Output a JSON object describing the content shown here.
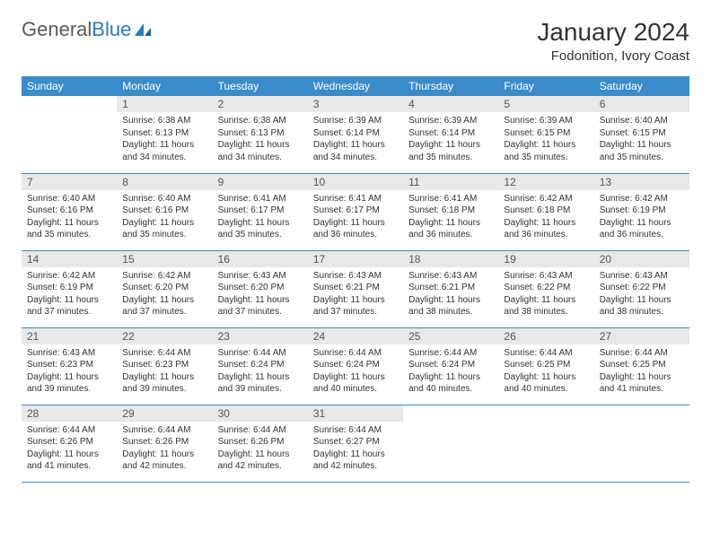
{
  "logo": {
    "text_gray": "General",
    "text_blue": "Blue"
  },
  "header": {
    "month_title": "January 2024",
    "location": "Fodonition, Ivory Coast"
  },
  "colors": {
    "header_bg": "#3a8bc9",
    "header_text": "#ffffff",
    "daynum_bg": "#e8e8e8",
    "daynum_text": "#555555",
    "body_text": "#333333",
    "row_divider": "#3a8bc9",
    "logo_gray": "#5a5a5a",
    "logo_blue": "#2b7bbf",
    "page_bg": "#ffffff"
  },
  "typography": {
    "month_title_pt": 28,
    "location_pt": 15,
    "weekday_header_pt": 12,
    "daynum_pt": 12,
    "daytext_pt": 10,
    "logo_pt": 22
  },
  "weekdays": [
    "Sunday",
    "Monday",
    "Tuesday",
    "Wednesday",
    "Thursday",
    "Friday",
    "Saturday"
  ],
  "calendar": {
    "type": "table",
    "columns": 7,
    "rows": 5,
    "first_weekday_index": 1,
    "days": [
      {
        "num": "1",
        "sunrise": "Sunrise: 6:38 AM",
        "sunset": "Sunset: 6:13 PM",
        "daylight1": "Daylight: 11 hours",
        "daylight2": "and 34 minutes."
      },
      {
        "num": "2",
        "sunrise": "Sunrise: 6:38 AM",
        "sunset": "Sunset: 6:13 PM",
        "daylight1": "Daylight: 11 hours",
        "daylight2": "and 34 minutes."
      },
      {
        "num": "3",
        "sunrise": "Sunrise: 6:39 AM",
        "sunset": "Sunset: 6:14 PM",
        "daylight1": "Daylight: 11 hours",
        "daylight2": "and 34 minutes."
      },
      {
        "num": "4",
        "sunrise": "Sunrise: 6:39 AM",
        "sunset": "Sunset: 6:14 PM",
        "daylight1": "Daylight: 11 hours",
        "daylight2": "and 35 minutes."
      },
      {
        "num": "5",
        "sunrise": "Sunrise: 6:39 AM",
        "sunset": "Sunset: 6:15 PM",
        "daylight1": "Daylight: 11 hours",
        "daylight2": "and 35 minutes."
      },
      {
        "num": "6",
        "sunrise": "Sunrise: 6:40 AM",
        "sunset": "Sunset: 6:15 PM",
        "daylight1": "Daylight: 11 hours",
        "daylight2": "and 35 minutes."
      },
      {
        "num": "7",
        "sunrise": "Sunrise: 6:40 AM",
        "sunset": "Sunset: 6:16 PM",
        "daylight1": "Daylight: 11 hours",
        "daylight2": "and 35 minutes."
      },
      {
        "num": "8",
        "sunrise": "Sunrise: 6:40 AM",
        "sunset": "Sunset: 6:16 PM",
        "daylight1": "Daylight: 11 hours",
        "daylight2": "and 35 minutes."
      },
      {
        "num": "9",
        "sunrise": "Sunrise: 6:41 AM",
        "sunset": "Sunset: 6:17 PM",
        "daylight1": "Daylight: 11 hours",
        "daylight2": "and 35 minutes."
      },
      {
        "num": "10",
        "sunrise": "Sunrise: 6:41 AM",
        "sunset": "Sunset: 6:17 PM",
        "daylight1": "Daylight: 11 hours",
        "daylight2": "and 36 minutes."
      },
      {
        "num": "11",
        "sunrise": "Sunrise: 6:41 AM",
        "sunset": "Sunset: 6:18 PM",
        "daylight1": "Daylight: 11 hours",
        "daylight2": "and 36 minutes."
      },
      {
        "num": "12",
        "sunrise": "Sunrise: 6:42 AM",
        "sunset": "Sunset: 6:18 PM",
        "daylight1": "Daylight: 11 hours",
        "daylight2": "and 36 minutes."
      },
      {
        "num": "13",
        "sunrise": "Sunrise: 6:42 AM",
        "sunset": "Sunset: 6:19 PM",
        "daylight1": "Daylight: 11 hours",
        "daylight2": "and 36 minutes."
      },
      {
        "num": "14",
        "sunrise": "Sunrise: 6:42 AM",
        "sunset": "Sunset: 6:19 PM",
        "daylight1": "Daylight: 11 hours",
        "daylight2": "and 37 minutes."
      },
      {
        "num": "15",
        "sunrise": "Sunrise: 6:42 AM",
        "sunset": "Sunset: 6:20 PM",
        "daylight1": "Daylight: 11 hours",
        "daylight2": "and 37 minutes."
      },
      {
        "num": "16",
        "sunrise": "Sunrise: 6:43 AM",
        "sunset": "Sunset: 6:20 PM",
        "daylight1": "Daylight: 11 hours",
        "daylight2": "and 37 minutes."
      },
      {
        "num": "17",
        "sunrise": "Sunrise: 6:43 AM",
        "sunset": "Sunset: 6:21 PM",
        "daylight1": "Daylight: 11 hours",
        "daylight2": "and 37 minutes."
      },
      {
        "num": "18",
        "sunrise": "Sunrise: 6:43 AM",
        "sunset": "Sunset: 6:21 PM",
        "daylight1": "Daylight: 11 hours",
        "daylight2": "and 38 minutes."
      },
      {
        "num": "19",
        "sunrise": "Sunrise: 6:43 AM",
        "sunset": "Sunset: 6:22 PM",
        "daylight1": "Daylight: 11 hours",
        "daylight2": "and 38 minutes."
      },
      {
        "num": "20",
        "sunrise": "Sunrise: 6:43 AM",
        "sunset": "Sunset: 6:22 PM",
        "daylight1": "Daylight: 11 hours",
        "daylight2": "and 38 minutes."
      },
      {
        "num": "21",
        "sunrise": "Sunrise: 6:43 AM",
        "sunset": "Sunset: 6:23 PM",
        "daylight1": "Daylight: 11 hours",
        "daylight2": "and 39 minutes."
      },
      {
        "num": "22",
        "sunrise": "Sunrise: 6:44 AM",
        "sunset": "Sunset: 6:23 PM",
        "daylight1": "Daylight: 11 hours",
        "daylight2": "and 39 minutes."
      },
      {
        "num": "23",
        "sunrise": "Sunrise: 6:44 AM",
        "sunset": "Sunset: 6:24 PM",
        "daylight1": "Daylight: 11 hours",
        "daylight2": "and 39 minutes."
      },
      {
        "num": "24",
        "sunrise": "Sunrise: 6:44 AM",
        "sunset": "Sunset: 6:24 PM",
        "daylight1": "Daylight: 11 hours",
        "daylight2": "and 40 minutes."
      },
      {
        "num": "25",
        "sunrise": "Sunrise: 6:44 AM",
        "sunset": "Sunset: 6:24 PM",
        "daylight1": "Daylight: 11 hours",
        "daylight2": "and 40 minutes."
      },
      {
        "num": "26",
        "sunrise": "Sunrise: 6:44 AM",
        "sunset": "Sunset: 6:25 PM",
        "daylight1": "Daylight: 11 hours",
        "daylight2": "and 40 minutes."
      },
      {
        "num": "27",
        "sunrise": "Sunrise: 6:44 AM",
        "sunset": "Sunset: 6:25 PM",
        "daylight1": "Daylight: 11 hours",
        "daylight2": "and 41 minutes."
      },
      {
        "num": "28",
        "sunrise": "Sunrise: 6:44 AM",
        "sunset": "Sunset: 6:26 PM",
        "daylight1": "Daylight: 11 hours",
        "daylight2": "and 41 minutes."
      },
      {
        "num": "29",
        "sunrise": "Sunrise: 6:44 AM",
        "sunset": "Sunset: 6:26 PM",
        "daylight1": "Daylight: 11 hours",
        "daylight2": "and 42 minutes."
      },
      {
        "num": "30",
        "sunrise": "Sunrise: 6:44 AM",
        "sunset": "Sunset: 6:26 PM",
        "daylight1": "Daylight: 11 hours",
        "daylight2": "and 42 minutes."
      },
      {
        "num": "31",
        "sunrise": "Sunrise: 6:44 AM",
        "sunset": "Sunset: 6:27 PM",
        "daylight1": "Daylight: 11 hours",
        "daylight2": "and 42 minutes."
      }
    ]
  }
}
